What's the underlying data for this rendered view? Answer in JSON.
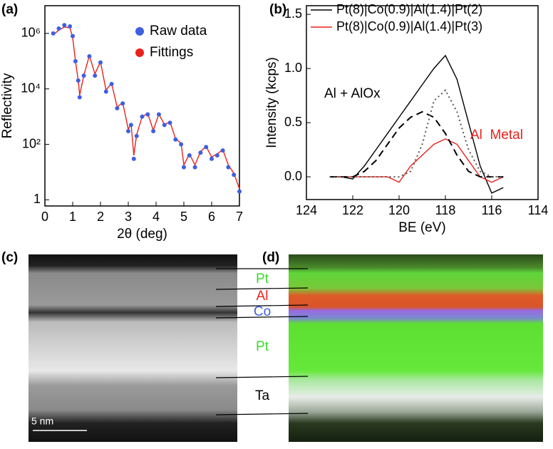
{
  "panel_labels": [
    "(a)",
    "(b)",
    "(c)",
    "(d)"
  ],
  "chart_data": [
    {
      "type": "scatter",
      "xlabel": "2θ (deg)",
      "ylabel": "Reflectivity",
      "log_y": true,
      "xlim": [
        0,
        7
      ],
      "ylim": [
        0.6,
        10000000
      ],
      "xticks": [
        0,
        1,
        2,
        3,
        4,
        5,
        6,
        7
      ],
      "yticks": [
        1,
        {
          "value": 100,
          "label": "10²"
        },
        {
          "value": 10000,
          "label": "10⁴"
        },
        {
          "value": 1000000,
          "label": "10⁶"
        }
      ],
      "legend": "upper right",
      "x": [
        0.3,
        0.5,
        0.7,
        0.9,
        1.0,
        1.1,
        1.2,
        1.25,
        1.4,
        1.6,
        1.8,
        2.0,
        2.2,
        2.4,
        2.6,
        2.8,
        3.0,
        3.1,
        3.2,
        3.3,
        3.5,
        3.7,
        3.9,
        4.1,
        4.3,
        4.5,
        4.7,
        4.9,
        5.0,
        5.2,
        5.4,
        5.6,
        5.8,
        6.0,
        6.2,
        6.4,
        6.6,
        6.8,
        7.0
      ],
      "series": [
        {
          "name": "Fittings",
          "color": "#e8231c",
          "marker": "line",
          "values": [
            900000,
            1300000,
            1700000,
            1600000,
            700000,
            100000,
            20000,
            6000,
            30000,
            160000,
            35000,
            95000,
            9000,
            16000,
            2200,
            3200,
            350,
            550,
            40,
            220,
            1000,
            1300,
            320,
            1250,
            520,
            650,
            160,
            110,
            18,
            45,
            18,
            55,
            85,
            35,
            45,
            65,
            18,
            9,
            2.5
          ]
        },
        {
          "name": "Raw data",
          "color": "#3f5fe0",
          "marker": "dot",
          "values": [
            1000000,
            1500000,
            2000000,
            1800000,
            800000,
            100000,
            20000,
            5000,
            30000,
            150000,
            30000,
            90000,
            8000,
            15000,
            2000,
            3000,
            300,
            500,
            30,
            200,
            1000,
            1200,
            300,
            1200,
            500,
            600,
            150,
            100,
            15,
            40,
            15,
            50,
            80,
            30,
            40,
            60,
            15,
            8,
            2
          ]
        }
      ]
    },
    {
      "type": "line",
      "xlabel": "BE (eV)",
      "ylabel": "Intensity (kcps)",
      "xlim": [
        124,
        114
      ],
      "ylim": [
        -0.21,
        1.58
      ],
      "xticks": [
        124,
        122,
        120,
        118,
        116,
        114
      ],
      "yticks": [
        {
          "value": 0,
          "label": "0.0"
        },
        0.5,
        {
          "value": 1,
          "label": "1.0"
        },
        1.5
      ],
      "legend": "upper right",
      "x": [
        123,
        122.5,
        122,
        121.5,
        121,
        120.5,
        120,
        119.5,
        119,
        118.5,
        118,
        117.5,
        117,
        116.5,
        116,
        115.5
      ],
      "series": [
        {
          "name": "Pt(8)|Co(0.9)|Al(1.4)|Pt(2)",
          "color": "#000000",
          "values": [
            0,
            0,
            -0.02,
            0.1,
            0.25,
            0.4,
            0.55,
            0.7,
            0.85,
            1.0,
            1.12,
            0.9,
            0.5,
            0.1,
            -0.15,
            -0.1
          ]
        },
        {
          "name": "Pt(8)|Co(0.9)|Al(1.4)|Pt(3)",
          "color": "#e8231c",
          "values": [
            0,
            0,
            0,
            0,
            0,
            0,
            -0.05,
            0.1,
            0.2,
            0.3,
            0.35,
            0.3,
            0.15,
            0,
            -0.05,
            0
          ]
        },
        {
          "color": "#000000",
          "dash": "10,6",
          "values": [
            0,
            0,
            0,
            0.05,
            0.15,
            0.3,
            0.45,
            0.55,
            0.6,
            0.55,
            0.4,
            0.2,
            0.05,
            0,
            0,
            0
          ]
        },
        {
          "color": "#555555",
          "dash": "2,4",
          "values": [
            0,
            0,
            0,
            0,
            0,
            0,
            0,
            0.05,
            0.3,
            0.7,
            0.8,
            0.6,
            0.25,
            0.05,
            0,
            0
          ]
        }
      ],
      "annotations": [
        "Al + AlOx",
        "Al  Metal"
      ]
    }
  ],
  "micrographs": {
    "scale_bar": "5 nm",
    "layers": [
      "Pt",
      "Al",
      "Co",
      "Pt",
      "Ta"
    ],
    "layer_colors": [
      "#3bdc2a",
      "#e8231c",
      "#3f5fe0",
      "#3bdc2a",
      "#000000"
    ]
  }
}
